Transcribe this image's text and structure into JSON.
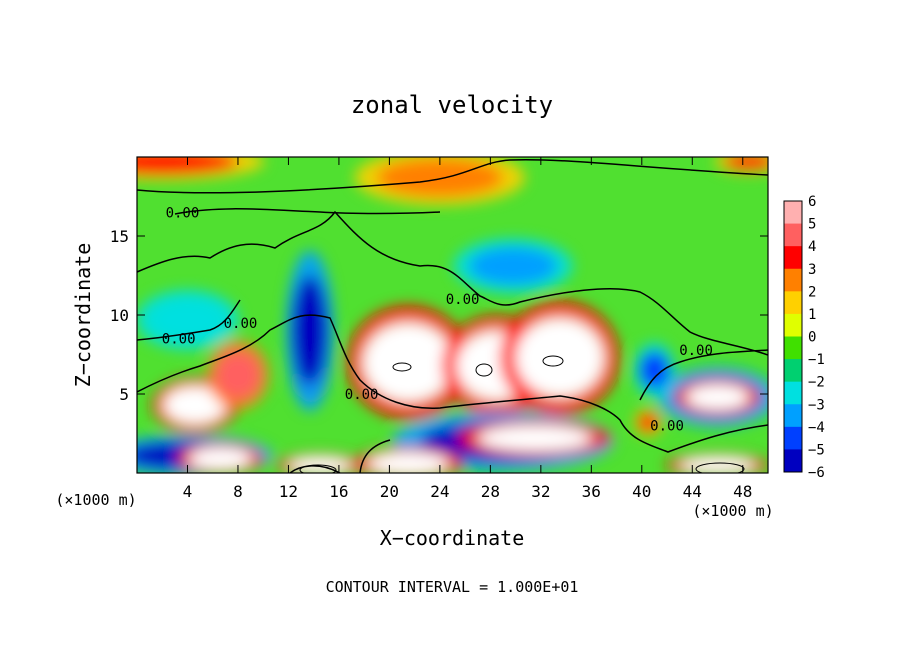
{
  "chart_data": {
    "type": "heatmap",
    "title": "zonal velocity",
    "xlabel": "X−coordinate",
    "ylabel": "Z−coordinate",
    "x_unit_left": "(×1000 m)",
    "x_unit_right": "(×1000 m)",
    "footer": "CONTOUR INTERVAL = 1.000E+01",
    "xlim": [
      0,
      50
    ],
    "ylim": [
      0,
      20
    ],
    "x_ticks": [
      4,
      8,
      12,
      16,
      20,
      24,
      28,
      32,
      36,
      40,
      44,
      48
    ],
    "x_tick_labels": [
      "4",
      "8",
      "12",
      "16",
      "20",
      "24",
      "28",
      "32",
      "36",
      "40",
      "44",
      "48"
    ],
    "y_ticks": [
      5,
      10,
      15
    ],
    "y_tick_labels": [
      "5",
      "10",
      "15"
    ],
    "colorbar": {
      "levels": [
        6,
        5,
        4,
        3,
        2,
        1,
        0,
        -1,
        -2,
        -3,
        -4,
        -5,
        -6
      ],
      "labels": [
        "6",
        "5",
        "4",
        "3",
        "2",
        "1",
        "0",
        "−1",
        "−2",
        "−3",
        "−4",
        "−5",
        "−6"
      ],
      "colors": [
        "#ffb0b0",
        "#ff6060",
        "#ff0000",
        "#ff8000",
        "#ffd000",
        "#e0ff00",
        "#40e000",
        "#00d070",
        "#00e0e0",
        "#00a0ff",
        "#0040ff",
        "#0000c0",
        "#6000c0"
      ]
    },
    "contour_labels": [
      {
        "text": "0.00",
        "x": 3.6,
        "z": 16.5
      },
      {
        "text": "0.00",
        "x": 8.2,
        "z": 9.5
      },
      {
        "text": "0.00",
        "x": 3.3,
        "z": 8.5
      },
      {
        "text": "0.00",
        "x": 17.8,
        "z": 5.0
      },
      {
        "text": "0.00",
        "x": 25.8,
        "z": 11.0
      },
      {
        "text": "0.00",
        "x": 42.0,
        "z": 3.0
      },
      {
        "text": "0.00",
        "x": 44.3,
        "z": 7.8
      }
    ],
    "features": [
      {
        "value": 6,
        "x": 4.6,
        "z": 4.3,
        "rx": 2.5,
        "rz": 1.2
      },
      {
        "value": 5,
        "x": 8.0,
        "z": 6.2,
        "rx": 1.8,
        "rz": 1.5
      },
      {
        "value": 6,
        "x": 21.5,
        "z": 7.0,
        "rx": 3.6,
        "rz": 2.5
      },
      {
        "value": 6,
        "x": 28.5,
        "z": 6.8,
        "rx": 3.2,
        "rz": 2.2
      },
      {
        "value": 6,
        "x": 33.5,
        "z": 7.3,
        "rx": 3.5,
        "rz": 2.5
      },
      {
        "value": 6,
        "x": 13.8,
        "z": 6.3,
        "rx": 1.0,
        "rz": 1.1
      },
      {
        "value": -5,
        "x": 13.7,
        "z": 9.0,
        "rx": 1.4,
        "rz": 3.5
      },
      {
        "value": -3,
        "x": 29.8,
        "z": 13.1,
        "rx": 3.5,
        "rz": 1.2
      },
      {
        "value": -5,
        "x": 4.0,
        "z": 1.1,
        "rx": 5.0,
        "rz": 0.9
      },
      {
        "value": -5,
        "x": 29.0,
        "z": 2.0,
        "rx": 6.5,
        "rz": 1.3
      },
      {
        "value": -5,
        "x": 46.0,
        "z": 4.8,
        "rx": 3.5,
        "rz": 1.3
      },
      {
        "value": 6,
        "x": 46.0,
        "z": 4.8,
        "rx": 2.5,
        "rz": 0.8
      },
      {
        "value": 6,
        "x": 31.5,
        "z": 2.2,
        "rx": 4.5,
        "rz": 0.8
      },
      {
        "value": 6,
        "x": 6.6,
        "z": 0.9,
        "rx": 2.5,
        "rz": 0.7
      },
      {
        "value": 6,
        "x": 14.5,
        "z": 0.5,
        "rx": 2.5,
        "rz": 0.5
      },
      {
        "value": 6,
        "x": 21.5,
        "z": 0.6,
        "rx": 3.2,
        "rz": 0.7
      },
      {
        "value": 6,
        "x": 46.0,
        "z": 0.5,
        "rx": 3.0,
        "rz": 0.5
      },
      {
        "value": 4,
        "x": 2.0,
        "z": 19.7,
        "rx": 6.0,
        "rz": 0.8
      },
      {
        "value": 4,
        "x": 48.5,
        "z": 19.7,
        "rx": 2.0,
        "rz": 0.5
      },
      {
        "value": 3,
        "x": 24.0,
        "z": 18.7,
        "rx": 5.0,
        "rz": 1.2
      },
      {
        "value": -2,
        "x": 4.0,
        "z": 9.7,
        "rx": 3.0,
        "rz": 1.3
      },
      {
        "value": -4,
        "x": 41.0,
        "z": 6.5,
        "rx": 1.2,
        "rz": 1.2
      },
      {
        "value": 4,
        "x": 40.5,
        "z": 3.2,
        "rx": 0.8,
        "rz": 0.6
      }
    ]
  }
}
